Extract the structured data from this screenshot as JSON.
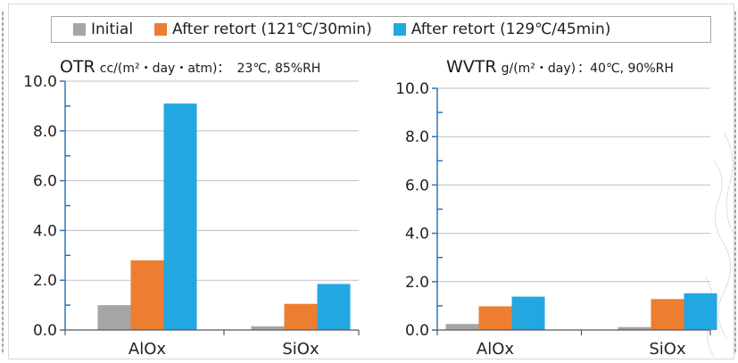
{
  "legend": [
    {
      "label": "Initial",
      "color": "#a6a6a6"
    },
    {
      "label": "After retort (121℃/30min)",
      "color": "#ed7d31"
    },
    {
      "label": "After retort (129℃/45min)",
      "color": "#22a7e0"
    }
  ],
  "panels": {
    "otr": {
      "title_main": "OTR",
      "title_unit": "cc/(m²・day・atm)：",
      "title_cond": "23℃, 85%RH"
    },
    "wvtr": {
      "title_main": "WVTR",
      "title_unit": "g/(m²・day)",
      "title_cond": "：40℃, 90%RH"
    }
  },
  "chart_data": [
    {
      "type": "bar",
      "title": "OTR cc/(m²・day・atm)： 23℃, 85%RH",
      "categories": [
        "AlOx",
        "SiOx"
      ],
      "series": [
        {
          "name": "Initial",
          "values": [
            1.0,
            0.15
          ],
          "color": "#a6a6a6"
        },
        {
          "name": "After retort (121℃/30min)",
          "values": [
            2.8,
            1.05
          ],
          "color": "#ed7d31"
        },
        {
          "name": "After retort (129℃/45min)",
          "values": [
            9.1,
            1.85
          ],
          "color": "#22a7e0"
        }
      ],
      "ylim": [
        0,
        10
      ],
      "yticks": [
        "0.0",
        "2.0",
        "4.0",
        "6.0",
        "8.0",
        "10.0"
      ],
      "grid": true,
      "legend_position": "top"
    },
    {
      "type": "bar",
      "title": "WVTR g/(m²・day)：40℃, 90%RH",
      "categories": [
        "AlOx",
        "SiOx"
      ],
      "series": [
        {
          "name": "Initial",
          "values": [
            0.25,
            0.12
          ],
          "color": "#a6a6a6"
        },
        {
          "name": "After retort (121℃/30min)",
          "values": [
            0.98,
            1.28
          ],
          "color": "#ed7d31"
        },
        {
          "name": "After retort (129℃/45min)",
          "values": [
            1.38,
            1.52
          ],
          "color": "#22a7e0"
        }
      ],
      "ylim": [
        0,
        10
      ],
      "yticks": [
        "0.0",
        "2.0",
        "4.0",
        "6.0",
        "8.0",
        "10.0"
      ],
      "grid": true,
      "legend_position": "top"
    }
  ]
}
